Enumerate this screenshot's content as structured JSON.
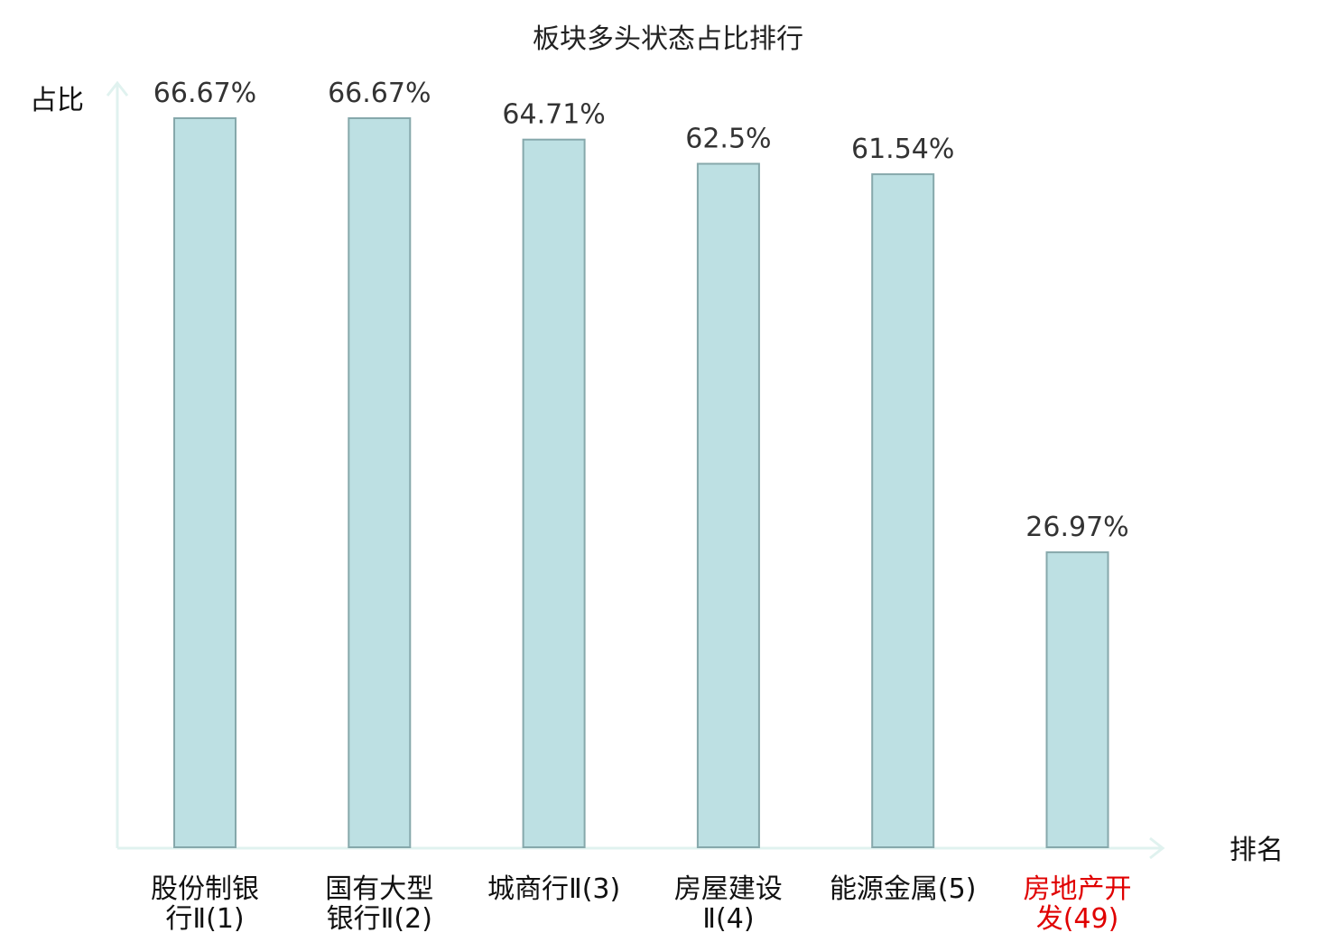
{
  "chart_data": {
    "type": "bar",
    "title": "板块多头状态占比排行",
    "ylabel": "占比",
    "xlabel": "排名",
    "ylim": [
      0,
      70
    ],
    "grid": false,
    "legend": "none",
    "categories": [
      {
        "lines": [
          "股份制银",
          "行Ⅱ(1)"
        ],
        "highlight": false
      },
      {
        "lines": [
          "国有大型",
          "银行Ⅱ(2)"
        ],
        "highlight": false
      },
      {
        "lines": [
          "城商行Ⅱ(3)"
        ],
        "highlight": false
      },
      {
        "lines": [
          "房屋建设",
          "Ⅱ(4)"
        ],
        "highlight": false
      },
      {
        "lines": [
          "能源金属(5)"
        ],
        "highlight": false
      },
      {
        "lines": [
          "房地产开",
          "发(49)"
        ],
        "highlight": true
      }
    ],
    "values": [
      66.67,
      66.67,
      64.71,
      62.5,
      61.54,
      26.97
    ],
    "value_labels": [
      "66.67%",
      "66.67%",
      "64.71%",
      "62.5%",
      "61.54%",
      "26.97%"
    ],
    "colors": {
      "bar_fill": "#bde0e3",
      "bar_stroke": "#86a8ab",
      "axis": "#e0f2ef",
      "label": "#111111",
      "highlight": "#e00000"
    }
  }
}
